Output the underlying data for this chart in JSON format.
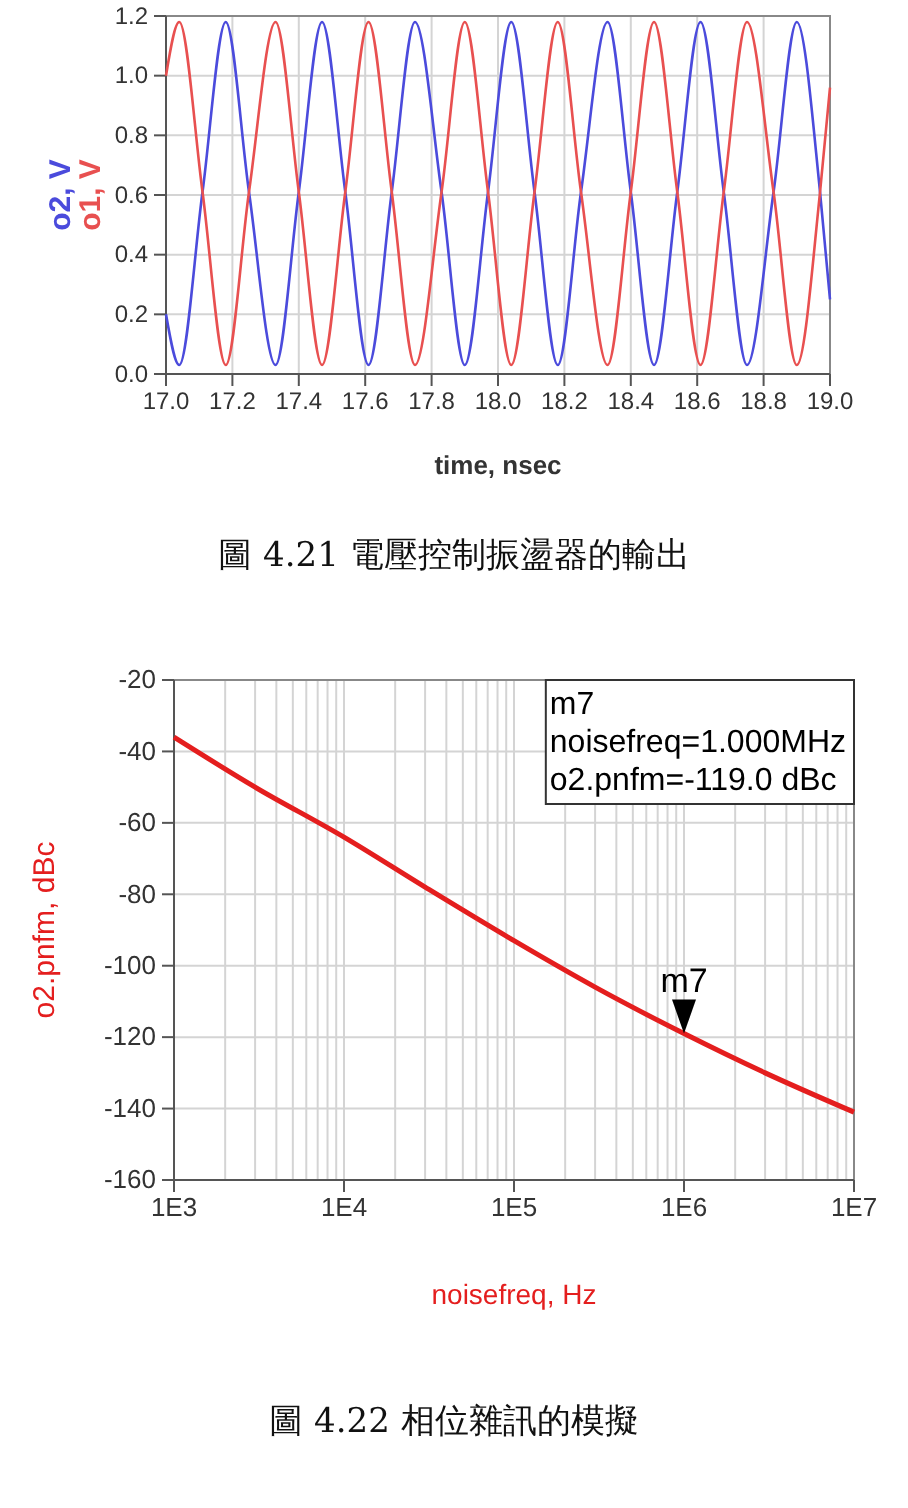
{
  "chart_data": [
    {
      "type": "line",
      "title": "圖 4.21 電壓控制振盪器的輸出",
      "xlabel": "time, nsec",
      "xlim": [
        17.0,
        19.0
      ],
      "ylim": [
        0.0,
        1.2
      ],
      "xticks": [
        {
          "value": 17.0,
          "label": "17.0"
        },
        17.2,
        17.4,
        17.6,
        17.8,
        {
          "value": 18.0,
          "label": "18.0"
        },
        18.2,
        18.4,
        18.6,
        18.8,
        {
          "value": 19.0,
          "label": "19.0"
        }
      ],
      "yticks": [
        {
          "value": 0.0,
          "label": "0.0"
        },
        0.2,
        0.4,
        0.6,
        0.8,
        {
          "value": 1.0,
          "label": "1.0"
        },
        1.2
      ],
      "grid": true,
      "series": [
        {
          "name": "o2, V",
          "color": "#4b4bdc",
          "x": [
            17.0,
            17.04,
            17.11,
            17.18,
            17.25,
            17.33,
            17.4,
            17.47,
            17.54,
            17.61,
            17.68,
            17.75,
            17.83,
            17.9,
            17.97,
            18.04,
            18.11,
            18.18,
            18.25,
            18.33,
            18.4,
            18.47,
            18.54,
            18.61,
            18.68,
            18.75,
            18.83,
            18.9,
            18.97,
            19.0
          ],
          "values": [
            0.2,
            0.03,
            0.61,
            1.18,
            0.61,
            0.03,
            0.61,
            1.18,
            0.61,
            0.03,
            0.61,
            1.18,
            0.61,
            0.03,
            0.61,
            1.18,
            0.61,
            0.03,
            0.61,
            1.18,
            0.61,
            0.03,
            0.61,
            1.18,
            0.61,
            0.03,
            0.61,
            1.18,
            0.61,
            0.25
          ]
        },
        {
          "name": "o1, V",
          "color": "#e85050",
          "x": [
            17.0,
            17.04,
            17.11,
            17.18,
            17.25,
            17.33,
            17.4,
            17.47,
            17.54,
            17.61,
            17.68,
            17.75,
            17.83,
            17.9,
            17.97,
            18.04,
            18.11,
            18.18,
            18.25,
            18.33,
            18.4,
            18.47,
            18.54,
            18.61,
            18.68,
            18.75,
            18.83,
            18.9,
            18.97,
            19.0
          ],
          "values": [
            1.0,
            1.18,
            0.61,
            0.03,
            0.61,
            1.18,
            0.61,
            0.03,
            0.61,
            1.18,
            0.61,
            0.03,
            0.61,
            1.18,
            0.61,
            0.03,
            0.61,
            1.18,
            0.61,
            0.03,
            0.61,
            1.18,
            0.61,
            0.03,
            0.61,
            1.18,
            0.61,
            0.03,
            0.61,
            0.96
          ]
        }
      ]
    },
    {
      "type": "line",
      "title": "圖 4.22 相位雜訊的模擬",
      "xlabel": "noisefreq, Hz",
      "ylabel": "o2.pnfm, dBc",
      "log": "x",
      "xlim": [
        1000,
        10000000
      ],
      "ylim": [
        -160,
        -20
      ],
      "xticks": [
        {
          "value": 1000,
          "label": "1E3"
        },
        {
          "value": 10000,
          "label": "1E4"
        },
        {
          "value": 100000,
          "label": "1E5"
        },
        {
          "value": 1000000,
          "label": "1E6"
        },
        {
          "value": 10000000,
          "label": "1E7"
        }
      ],
      "yticks": [
        -160,
        -140,
        -120,
        -100,
        -80,
        -60,
        -40,
        -20
      ],
      "grid": true,
      "series": [
        {
          "color": "#e41e1e",
          "x": [
            1000,
            3000,
            10000,
            30000,
            100000,
            300000,
            1000000,
            3000000,
            10000000
          ],
          "values": [
            -36,
            -50,
            -64,
            -78,
            -93,
            -106,
            -119,
            -130,
            -141
          ]
        }
      ],
      "annotations": [
        {
          "text": "m7",
          "x": 1000000,
          "y": -119
        },
        "m7\nnoisefreq=1.000MHz\no2.pnfm=-119.0 dBc"
      ]
    }
  ]
}
